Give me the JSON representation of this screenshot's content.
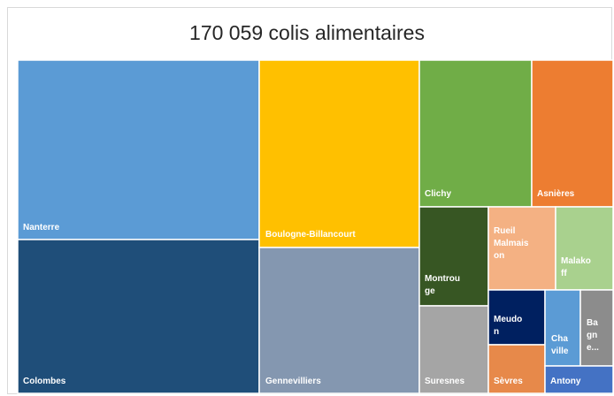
{
  "chart_data": {
    "type": "treemap",
    "title": "170 059 colis alimentaires",
    "total": "170 059",
    "nodes": [
      {
        "label": "Nanterre",
        "color": "#5b9bd5"
      },
      {
        "label": "Colombes",
        "color": "#1f4e79"
      },
      {
        "label": "Boulogne-Billancourt",
        "color": "#ffc000"
      },
      {
        "label": "Gennevilliers",
        "color": "#8497b0"
      },
      {
        "label": "Clichy",
        "color": "#70ad47"
      },
      {
        "label": "Asnières",
        "color": "#ed7d31"
      },
      {
        "label": "Montrouge",
        "color": "#375623"
      },
      {
        "label": "Rueil Malmaison",
        "color": "#f4b183"
      },
      {
        "label": "Malakoff",
        "color": "#a9d18e"
      },
      {
        "label": "Suresnes",
        "color": "#a5a5a5"
      },
      {
        "label": "Meudon",
        "color": "#002060"
      },
      {
        "label": "Sèvres",
        "color": "#e7894a"
      },
      {
        "label": "Chaville",
        "color": "#5b9bd5"
      },
      {
        "label": "Bagneux",
        "color": "#8c8c8c"
      },
      {
        "label": "Antony",
        "color": "#4472c4"
      }
    ]
  }
}
